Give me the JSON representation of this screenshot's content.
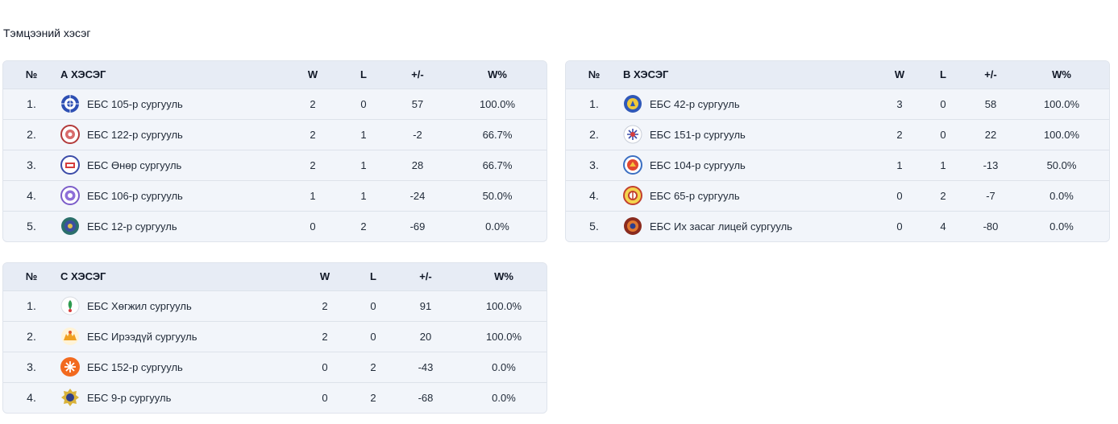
{
  "section_title": "Тэмцээний хэсэг",
  "headers": {
    "rank": "№",
    "w": "W",
    "l": "L",
    "diff": "+/-",
    "pct": "W%"
  },
  "groups": [
    {
      "title": "А ХЭСЭГ",
      "rows": [
        {
          "rank": "1.",
          "team": "ЕБС 105-р сургууль",
          "w": "2",
          "l": "0",
          "diff": "57",
          "pct": "100.0%",
          "logo": "school-105-logo"
        },
        {
          "rank": "2.",
          "team": "ЕБС 122-р сургууль",
          "w": "2",
          "l": "1",
          "diff": "-2",
          "pct": "66.7%",
          "logo": "school-122-logo"
        },
        {
          "rank": "3.",
          "team": "ЕБС Өнөр сургууль",
          "w": "2",
          "l": "1",
          "diff": "28",
          "pct": "66.7%",
          "logo": "school-onor-logo"
        },
        {
          "rank": "4.",
          "team": "ЕБС 106-р сургууль",
          "w": "1",
          "l": "1",
          "diff": "-24",
          "pct": "50.0%",
          "logo": "school-106-logo"
        },
        {
          "rank": "5.",
          "team": "ЕБС 12-р сургууль",
          "w": "0",
          "l": "2",
          "diff": "-69",
          "pct": "0.0%",
          "logo": "school-12-logo"
        }
      ]
    },
    {
      "title": "В ХЭСЭГ",
      "rows": [
        {
          "rank": "1.",
          "team": "ЕБС 42-р сургууль",
          "w": "3",
          "l": "0",
          "diff": "58",
          "pct": "100.0%",
          "logo": "school-42-logo"
        },
        {
          "rank": "2.",
          "team": "ЕБС 151-р сургууль",
          "w": "2",
          "l": "0",
          "diff": "22",
          "pct": "100.0%",
          "logo": "school-151-logo"
        },
        {
          "rank": "3.",
          "team": "ЕБС 104-р сургууль",
          "w": "1",
          "l": "1",
          "diff": "-13",
          "pct": "50.0%",
          "logo": "school-104-logo"
        },
        {
          "rank": "4.",
          "team": "ЕБС 65-р сургууль",
          "w": "0",
          "l": "2",
          "diff": "-7",
          "pct": "0.0%",
          "logo": "school-65-logo"
        },
        {
          "rank": "5.",
          "team": "ЕБС Их засаг лицей сургууль",
          "w": "0",
          "l": "4",
          "diff": "-80",
          "pct": "0.0%",
          "logo": "school-ikh-zasag-logo"
        }
      ]
    },
    {
      "title": "С ХЭСЭГ",
      "rows": [
        {
          "rank": "1.",
          "team": "ЕБС Хөгжил сургууль",
          "w": "2",
          "l": "0",
          "diff": "91",
          "pct": "100.0%",
          "logo": "school-khugjil-logo"
        },
        {
          "rank": "2.",
          "team": "ЕБС Ирээдүй сургууль",
          "w": "2",
          "l": "0",
          "diff": "20",
          "pct": "100.0%",
          "logo": "school-ireedui-logo"
        },
        {
          "rank": "3.",
          "team": "ЕБС 152-р сургууль",
          "w": "0",
          "l": "2",
          "diff": "-43",
          "pct": "0.0%",
          "logo": "school-152-logo"
        },
        {
          "rank": "4.",
          "team": "ЕБС 9-р сургууль",
          "w": "0",
          "l": "2",
          "diff": "-68",
          "pct": "0.0%",
          "logo": "school-9-logo"
        }
      ]
    }
  ],
  "colors": {
    "header_bg": "#e7ecf5",
    "row_bg": "#f2f5fa",
    "border": "#dde2ea",
    "text": "#1f2937"
  }
}
